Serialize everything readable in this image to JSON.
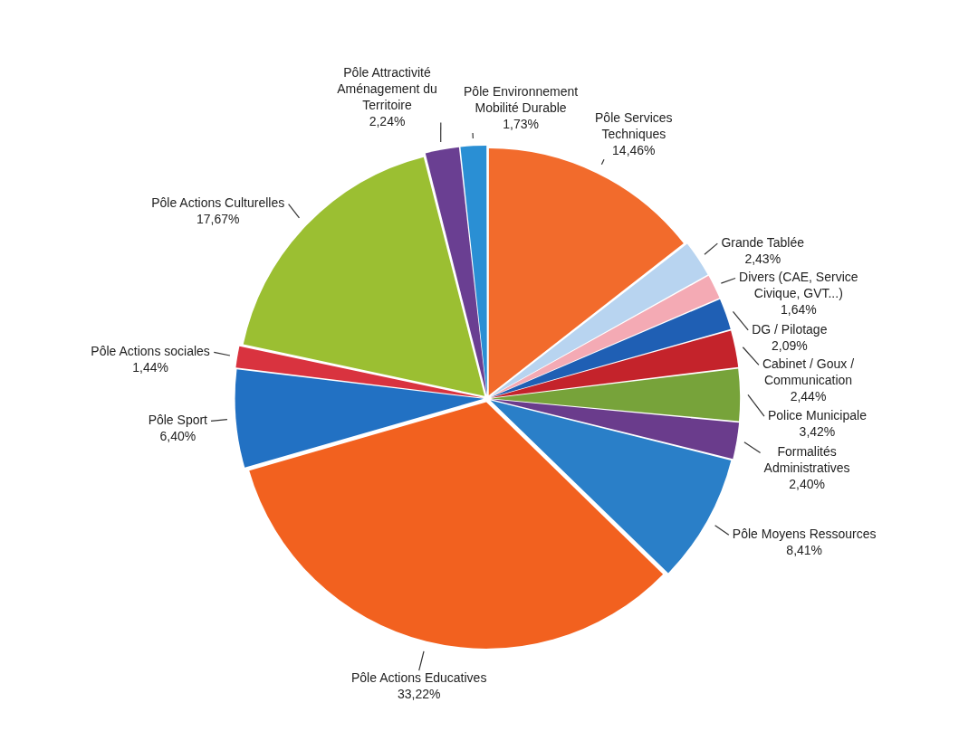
{
  "chart_data": {
    "type": "pie",
    "categories": [
      "Pôle Services Techniques",
      "Grande Tablée",
      "Divers (CAE, Service Civique, GVT...)",
      "DG / Pilotage",
      "Cabinet / Goux / Communication",
      "Police Municipale",
      "Formalités Administratives",
      "Pôle Moyens Ressources",
      "Pôle Actions Educatives",
      "Pôle Sport",
      "Pôle Actions sociales",
      "Pôle Actions Culturelles",
      "Pôle Attractivité Aménagement du Territoire",
      "Pôle Environnement Mobilité Durable"
    ],
    "values": [
      14.46,
      2.43,
      1.64,
      2.09,
      2.44,
      3.42,
      2.4,
      8.41,
      33.22,
      6.4,
      1.44,
      17.67,
      2.24,
      1.73
    ],
    "value_labels": [
      "14,46%",
      "2,43%",
      "1,64%",
      "2,09%",
      "2,44%",
      "3,42%",
      "2,40%",
      "8,41%",
      "33,22%",
      "6,40%",
      "1,44%",
      "17,67%",
      "2,24%",
      "1,73%"
    ],
    "colors": [
      "#f26b2c",
      "#b8d4f0",
      "#f4aab4",
      "#1f5fb4",
      "#c4232b",
      "#77a33a",
      "#6a3c8c",
      "#2a7fc8",
      "#f2611f",
      "#2271c3",
      "#d9333f",
      "#9bbf32",
      "#6a3f92",
      "#2a8fd4"
    ],
    "legend": false
  }
}
